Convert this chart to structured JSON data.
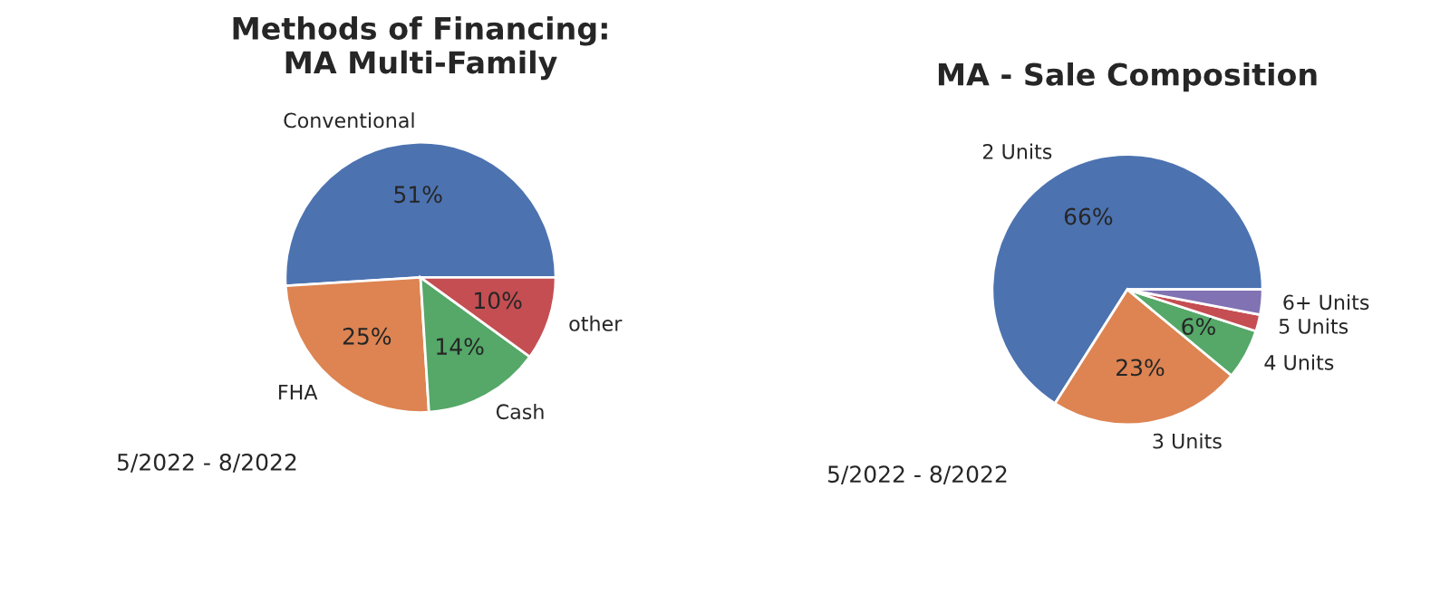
{
  "chart_data": [
    {
      "type": "pie",
      "title": "Methods of Financing:\nMA Multi-Family",
      "categories": [
        "Conventional",
        "FHA",
        "Cash",
        "other"
      ],
      "values": [
        51,
        25,
        14,
        10
      ],
      "colors": [
        "#4c72b0",
        "#dd8452",
        "#55a868",
        "#c44e52"
      ],
      "value_labels": [
        "51%",
        "25%",
        "14%",
        "10%"
      ],
      "annotations": [
        "5/2022 - 8/2022"
      ]
    },
    {
      "type": "pie",
      "title": "MA - Sale Composition",
      "categories": [
        "2 Units",
        "3 Units",
        "4 Units",
        "5 Units",
        "6+ Units"
      ],
      "values": [
        66,
        23,
        6,
        2,
        3
      ],
      "colors": [
        "#4c72b0",
        "#dd8452",
        "#55a868",
        "#c44e52",
        "#8172b3"
      ],
      "value_labels": [
        "66%",
        "23%",
        "6%",
        null,
        null
      ],
      "annotations": [
        "5/2022 - 8/2022"
      ]
    }
  ]
}
